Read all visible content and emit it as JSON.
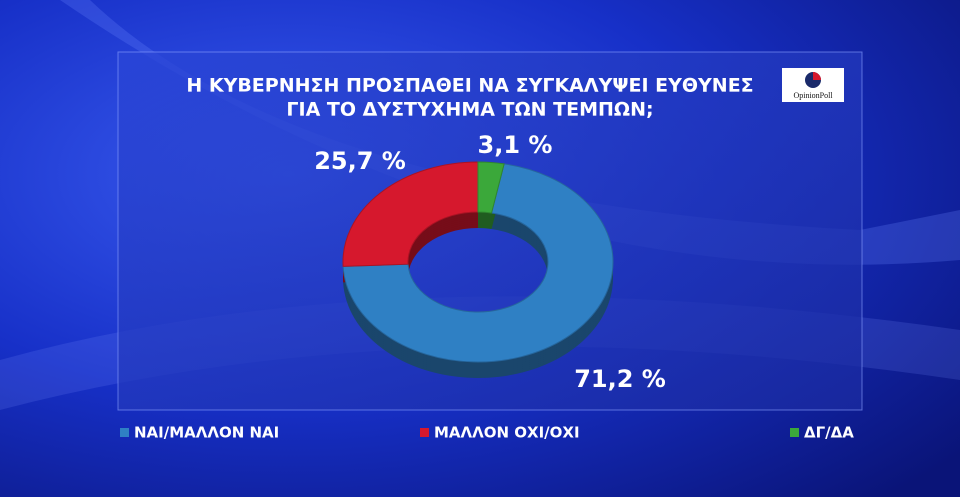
{
  "chart_data": {
    "type": "donut",
    "title": [
      "Η ΚΥΒΕΡΝΗΣΗ ΠΡΟΣΠΑΘΕΙ ΝΑ ΣΥΓΚΑΛΥΨΕΙ ΕΥΘΥΝΕΣ",
      "ΓΙΑ ΤΟ ΔΥΣΤΥΧΗΜΑ ΤΩΝ ΤΕΜΠΩΝ;"
    ],
    "logo": "OpinionPoll",
    "categories": [
      "ΝΑΙ/ΜΑΛΛΟΝ ΝΑΙ",
      "ΜΑΛΛΟΝ ΟΧΙ/ΟΧΙ",
      "ΔΓ/ΔΑ"
    ],
    "values": [
      71.2,
      25.7,
      3.1
    ],
    "value_labels": [
      "71,2 %",
      "25,7 %",
      "3,1 %"
    ],
    "colors": [
      "#2f80c4",
      "#d6182d",
      "#3ba83a"
    ],
    "legend": "bottom"
  }
}
